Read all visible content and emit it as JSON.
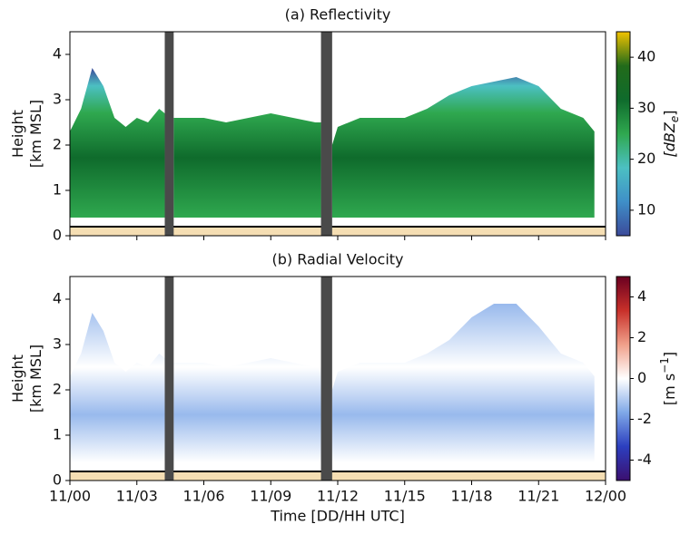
{
  "chart_data": [
    {
      "type": "heatmap",
      "title": "(a) Reflectivity",
      "ylabel": [
        "Height",
        "[km MSL]"
      ],
      "xlim": [
        0,
        24
      ],
      "ylim": [
        0,
        4.5
      ],
      "yticks": [
        0,
        1,
        2,
        3,
        4
      ],
      "x": [
        0,
        0.5,
        1,
        1.5,
        2,
        2.5,
        3,
        3.5,
        4,
        4.25,
        4.45,
        4.65,
        5,
        6,
        7,
        8,
        9,
        10,
        11,
        11.25,
        11.5,
        11.75,
        12,
        13,
        14,
        15,
        16,
        17,
        18,
        19,
        20,
        21,
        22,
        23,
        23.5
      ],
      "top": [
        2.3,
        2.8,
        3.7,
        3.3,
        2.6,
        2.4,
        2.6,
        2.5,
        2.8,
        2.7,
        null,
        2.6,
        2.6,
        2.6,
        2.5,
        2.6,
        2.7,
        2.6,
        2.5,
        2.5,
        null,
        2.0,
        2.4,
        2.6,
        2.6,
        2.6,
        2.8,
        3.1,
        3.3,
        3.4,
        3.5,
        3.3,
        2.8,
        2.6,
        2.3
      ],
      "base": 0.4,
      "ground_top": 0.2,
      "gaps": [
        [
          4.25,
          4.65
        ],
        [
          11.25,
          11.75
        ]
      ],
      "colorbar": {
        "lim": [
          5,
          45
        ],
        "ticks": [
          10,
          20,
          30,
          40
        ],
        "label": "[dBZ",
        "label_sub": "e",
        "label_end": "]",
        "colors": [
          "#3b4a9a",
          "#3f8fc8",
          "#4cc0c2",
          "#2fa84f",
          "#0f6b2c",
          "#226b1a",
          "#f2c200"
        ]
      }
    },
    {
      "type": "heatmap",
      "title": "(b) Radial Velocity",
      "ylabel": [
        "Height",
        "[km MSL]"
      ],
      "xlabel": "Time [DD/HH UTC]",
      "xlim": [
        0,
        24
      ],
      "ylim": [
        0,
        4.5
      ],
      "yticks": [
        0,
        1,
        2,
        3,
        4
      ],
      "xticks": [
        {
          "value": 0,
          "label": "11/00"
        },
        {
          "value": 3,
          "label": "11/03"
        },
        {
          "value": 6,
          "label": "11/06"
        },
        {
          "value": 9,
          "label": "11/09"
        },
        {
          "value": 12,
          "label": "11/12"
        },
        {
          "value": 15,
          "label": "11/15"
        },
        {
          "value": 18,
          "label": "11/18"
        },
        {
          "value": 21,
          "label": "11/21"
        },
        {
          "value": 24,
          "label": "12/00"
        }
      ],
      "x": [
        0,
        0.5,
        1,
        1.5,
        2,
        2.5,
        3,
        3.5,
        4,
        4.25,
        4.45,
        4.65,
        5,
        6,
        7,
        8,
        9,
        10,
        11,
        11.25,
        11.5,
        11.75,
        12,
        13,
        14,
        15,
        16,
        17,
        18,
        19,
        20,
        21,
        22,
        23,
        23.5
      ],
      "top": [
        2.3,
        2.8,
        3.7,
        3.3,
        2.6,
        2.4,
        2.6,
        2.5,
        2.8,
        2.7,
        null,
        2.6,
        2.6,
        2.6,
        2.5,
        2.6,
        2.7,
        2.6,
        2.5,
        2.5,
        null,
        2.0,
        2.4,
        2.6,
        2.6,
        2.6,
        2.8,
        3.1,
        3.6,
        3.9,
        3.9,
        3.4,
        2.8,
        2.6,
        2.3
      ],
      "base": 0.4,
      "ground_top": 0.2,
      "gaps": [
        [
          4.25,
          4.65
        ],
        [
          11.25,
          11.75
        ]
      ],
      "colorbar": {
        "lim": [
          -5,
          5
        ],
        "ticks": [
          -4,
          -2,
          0,
          2,
          4
        ],
        "label": "[m s",
        "label_sup": "−1",
        "label_end": "]",
        "colors": [
          "#3b0f6f",
          "#2c3fbf",
          "#7fa8e8",
          "#ffffff",
          "#f0a08a",
          "#c8302a",
          "#6a0020"
        ]
      }
    }
  ]
}
